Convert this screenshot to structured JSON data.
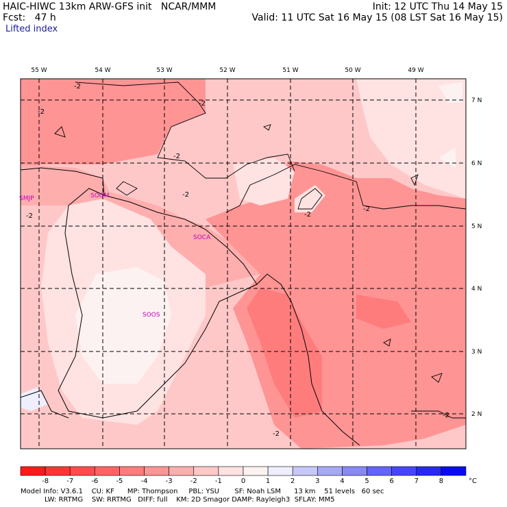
{
  "header": {
    "line1_left": "HAIC-HIWC 13km ARW-GFS init   NCAR/MMM",
    "line2_left": "Fcst:   47 h",
    "line1_right": "Init: 12 UTC Thu 14 May 15",
    "line2_right": "Valid: 11 UTC Sat 16 May 15 (08 LST Sat 16 May 15)",
    "field": "Lifted index"
  },
  "lon_labels": [
    "55 W",
    "54 W",
    "53 W",
    "52 W",
    "51 W",
    "50 W",
    "49 W"
  ],
  "lat_labels": [
    "7 N",
    "6 N",
    "5 N",
    "4 N",
    "3 N",
    "2 N"
  ],
  "stations": [
    "SMJP",
    "SOGM",
    "SOCA",
    "SOOS"
  ],
  "contour_label": "-2",
  "colorbar": {
    "ticks": [
      "-8",
      "-7",
      "-6",
      "-5",
      "-4",
      "-3",
      "-2",
      "-1",
      "0",
      "1",
      "2",
      "3",
      "4",
      "5",
      "6",
      "7",
      "8"
    ],
    "unit": "°C",
    "colors": [
      "#ff1a1a",
      "#ff3535",
      "#ff4c4c",
      "#ff6464",
      "#ff7c7c",
      "#ff9494",
      "#ffaeae",
      "#ffc8c8",
      "#ffe2e2",
      "#fdf2f2",
      "#eeeefc",
      "#c8c8f8",
      "#a8a8f8",
      "#8888f8",
      "#6464f8",
      "#4646f8",
      "#2828f8",
      "#0a0af8"
    ]
  },
  "footer": {
    "line1": "Model Info: V3.6.1    CU: KF      MP: Thompson     PBL: YSU       SF: Noah LSM      13 km    51 levels   60 sec",
    "line2": "           LW: RRTMG    SW: RRTMG   DIFF: full    KM: 2D Smagor DAMP: Rayleigh3  SFLAY: MM5"
  },
  "field_colors": {
    "level_m3": "#ff9494",
    "level_m2": "#ffaeae",
    "level_m1": "#ffc8c8",
    "level_0": "#ffe2e2",
    "level_p1": "#fdf2f2",
    "level_p2": "#eeeefc"
  }
}
